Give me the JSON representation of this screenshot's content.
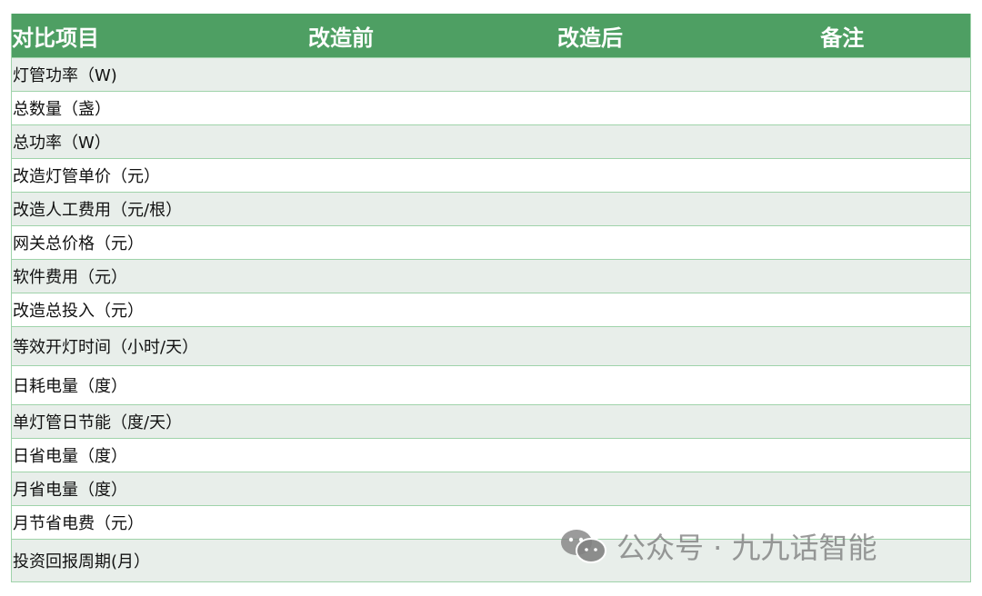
{
  "table": {
    "headers": [
      "对比项目",
      "改造前",
      "改造后",
      "备注"
    ],
    "rows": [
      "灯管功率（W)",
      "总数量（盏）",
      "总功率（W）",
      "改造灯管单价（元）",
      "改造人工费用（元/根）",
      "网关总价格（元）",
      "软件费用（元）",
      "改造总投入（元）",
      "等效开灯时间（小时/天）",
      "日耗电量（度）",
      "单灯管日节能（度/天）",
      "日省电量（度）",
      "月省电量（度）",
      "月节省电费（元）",
      "投资回报周期(月）"
    ]
  },
  "watermark": {
    "text": "公众号 · 九九话智能",
    "icon": "wechat-icon"
  },
  "colors": {
    "header_bg": "#4e9f63",
    "alt_row_bg": "#e8eeea",
    "border": "#9fd3aa"
  }
}
